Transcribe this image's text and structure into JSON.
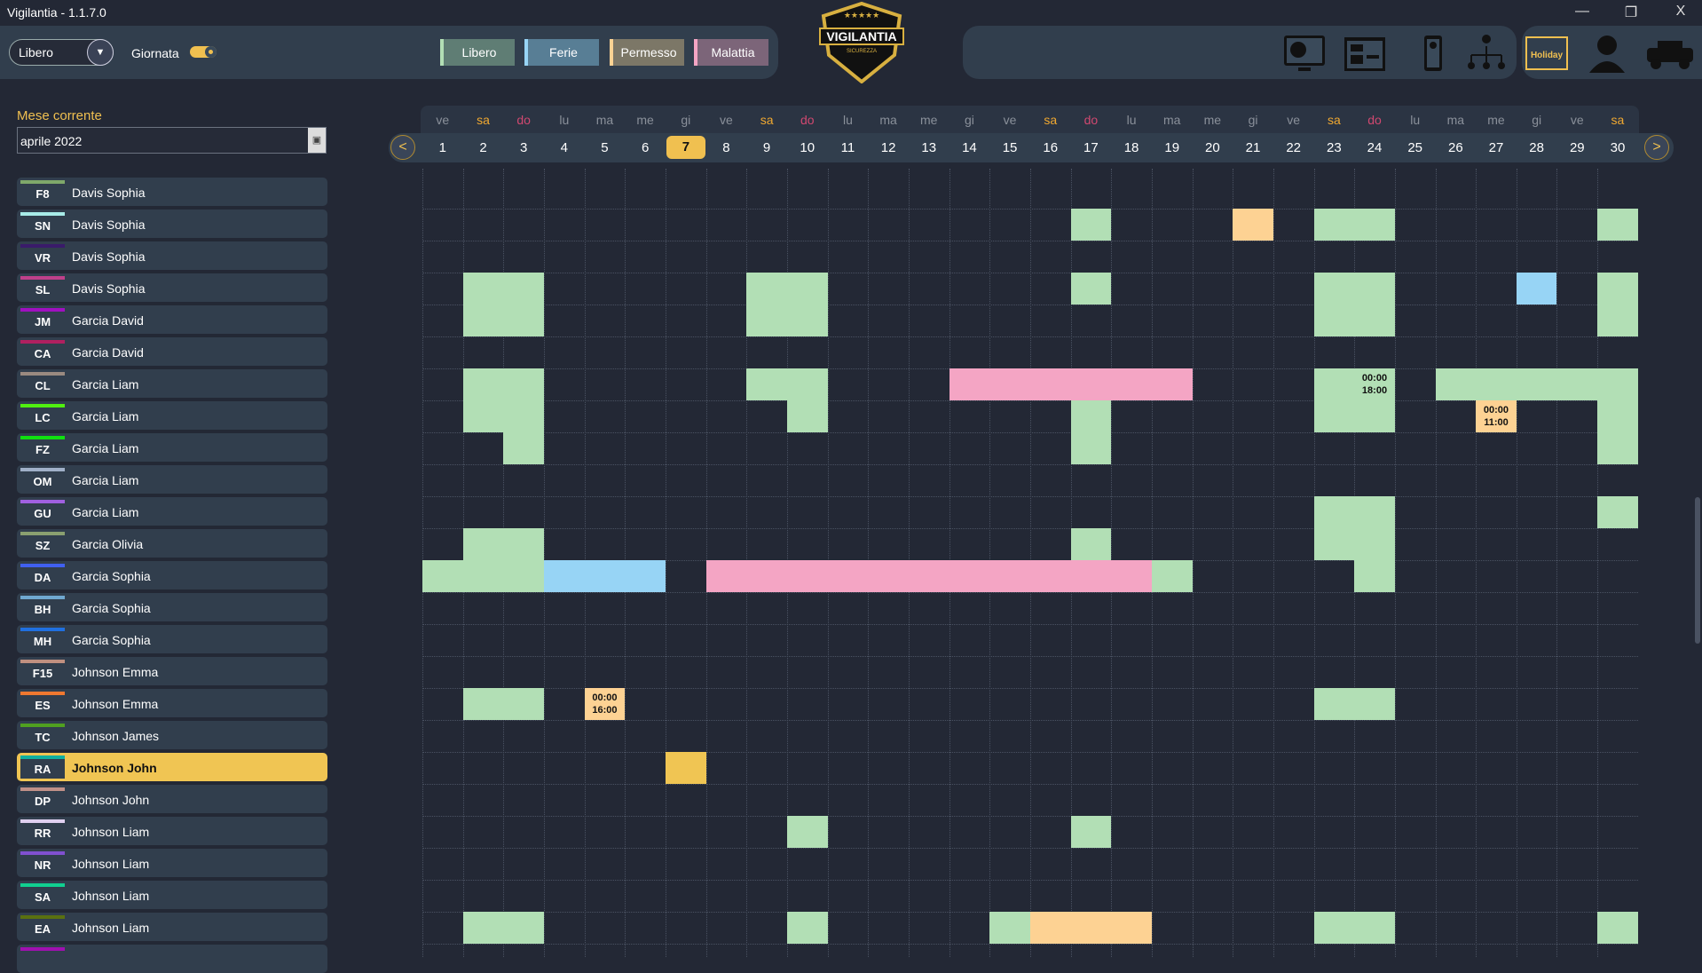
{
  "window": {
    "title": "Vigilantia - 1.1.7.0",
    "minimize": "—",
    "restore": "❐",
    "close": "X"
  },
  "toolbar": {
    "dropdown_value": "Libero",
    "giornata_label": "Giornata",
    "giornata_on": true,
    "legend": [
      {
        "label": "Libero",
        "color": "#b2dfb5",
        "bg": "#5f7d74"
      },
      {
        "label": "Ferie",
        "color": "#97d4f5",
        "bg": "#587e95"
      },
      {
        "label": "Permesso",
        "color": "#fdd293",
        "bg": "#7c7767"
      },
      {
        "label": "Malattia",
        "color": "#f4a5c4",
        "bg": "#7c6579"
      }
    ],
    "logo_text": "VIGILANTIA",
    "logo_sub": "SICUREZZA",
    "holiday_label": "Holiday"
  },
  "month": {
    "label": "Mese corrente",
    "value": "aprile 2022"
  },
  "calendar": {
    "weekdays": [
      "ve",
      "sa",
      "do",
      "lu",
      "ma",
      "me",
      "gi",
      "ve",
      "sa",
      "do",
      "lu",
      "ma",
      "me",
      "gi",
      "ve",
      "sa",
      "do",
      "lu",
      "ma",
      "me",
      "gi",
      "ve",
      "sa",
      "do",
      "lu",
      "ma",
      "me",
      "gi",
      "ve",
      "sa"
    ],
    "today": 7,
    "prev": "<",
    "next": ">"
  },
  "colors": {
    "libero": "#b2dfb5",
    "ferie": "#97d4f5",
    "permesso": "#fdd293",
    "malattia": "#f4a5c4",
    "selected": "#f0c553",
    "saturday": "#f0a830",
    "sunday": "#d04870"
  },
  "employees": [
    {
      "code": "F8",
      "name": "Davis Sophia",
      "stripe": "#7fa86a",
      "cells": []
    },
    {
      "code": "SN",
      "name": "Davis Sophia",
      "stripe": "#a8ece8",
      "cells": [
        {
          "from": 17,
          "to": 17,
          "type": "libero"
        },
        {
          "from": 21,
          "to": 21,
          "type": "permesso"
        },
        {
          "from": 23,
          "to": 24,
          "type": "libero"
        },
        {
          "from": 30,
          "to": 30,
          "type": "libero"
        }
      ]
    },
    {
      "code": "VR",
      "name": "Davis Sophia",
      "stripe": "#3a1a6a",
      "cells": []
    },
    {
      "code": "SL",
      "name": "Davis Sophia",
      "stripe": "#c0408a",
      "cells": [
        {
          "from": 2,
          "to": 3,
          "type": "libero"
        },
        {
          "from": 9,
          "to": 10,
          "type": "libero"
        },
        {
          "from": 17,
          "to": 17,
          "type": "libero"
        },
        {
          "from": 23,
          "to": 24,
          "type": "libero"
        },
        {
          "from": 28,
          "to": 28,
          "type": "ferie"
        },
        {
          "from": 30,
          "to": 30,
          "type": "libero"
        }
      ]
    },
    {
      "code": "JM",
      "name": "Garcia David",
      "stripe": "#a010c0",
      "cells": [
        {
          "from": 2,
          "to": 3,
          "type": "libero"
        },
        {
          "from": 9,
          "to": 10,
          "type": "libero"
        },
        {
          "from": 23,
          "to": 24,
          "type": "libero"
        },
        {
          "from": 30,
          "to": 30,
          "type": "libero"
        }
      ]
    },
    {
      "code": "CA",
      "name": "Garcia David",
      "stripe": "#b02060",
      "cells": []
    },
    {
      "code": "CL",
      "name": "Garcia Liam",
      "stripe": "#9a8a80",
      "cells": [
        {
          "from": 2,
          "to": 3,
          "type": "libero"
        },
        {
          "from": 9,
          "to": 10,
          "type": "libero"
        },
        {
          "from": 14,
          "to": 19,
          "type": "malattia"
        },
        {
          "from": 23,
          "to": 23,
          "type": "libero"
        },
        {
          "from": 24,
          "to": 24,
          "type": "libero",
          "text1": "00:00",
          "text2": "18:00"
        },
        {
          "from": 26,
          "to": 30,
          "type": "libero"
        }
      ]
    },
    {
      "code": "LC",
      "name": "Garcia Liam",
      "stripe": "#50f010",
      "cells": [
        {
          "from": 2,
          "to": 3,
          "type": "libero"
        },
        {
          "from": 10,
          "to": 10,
          "type": "libero"
        },
        {
          "from": 17,
          "to": 17,
          "type": "libero"
        },
        {
          "from": 23,
          "to": 24,
          "type": "libero"
        },
        {
          "from": 27,
          "to": 27,
          "type": "permesso",
          "text1": "00:00",
          "text2": "11:00"
        },
        {
          "from": 30,
          "to": 30,
          "type": "libero"
        }
      ]
    },
    {
      "code": "FZ",
      "name": "Garcia Liam",
      "stripe": "#10e010",
      "cells": [
        {
          "from": 3,
          "to": 3,
          "type": "libero"
        },
        {
          "from": 17,
          "to": 17,
          "type": "libero"
        },
        {
          "from": 30,
          "to": 30,
          "type": "libero"
        }
      ]
    },
    {
      "code": "OM",
      "name": "Garcia Liam",
      "stripe": "#a0b0c8",
      "cells": []
    },
    {
      "code": "GU",
      "name": "Garcia Liam",
      "stripe": "#a060e0",
      "cells": [
        {
          "from": 23,
          "to": 24,
          "type": "libero"
        },
        {
          "from": 30,
          "to": 30,
          "type": "libero"
        }
      ]
    },
    {
      "code": "SZ",
      "name": "Garcia Olivia",
      "stripe": "#8aa070",
      "cells": [
        {
          "from": 2,
          "to": 3,
          "type": "libero"
        },
        {
          "from": 17,
          "to": 17,
          "type": "libero"
        },
        {
          "from": 23,
          "to": 24,
          "type": "libero"
        }
      ]
    },
    {
      "code": "DA",
      "name": "Garcia Sophia",
      "stripe": "#4060f0",
      "cells": [
        {
          "from": 1,
          "to": 3,
          "type": "libero"
        },
        {
          "from": 4,
          "to": 6,
          "type": "ferie"
        },
        {
          "from": 8,
          "to": 18,
          "type": "malattia"
        },
        {
          "from": 19,
          "to": 19,
          "type": "libero"
        },
        {
          "from": 24,
          "to": 24,
          "type": "libero"
        }
      ]
    },
    {
      "code": "BH",
      "name": "Garcia Sophia",
      "stripe": "#70a8d0",
      "cells": []
    },
    {
      "code": "MH",
      "name": "Garcia Sophia",
      "stripe": "#2070e0",
      "cells": []
    },
    {
      "code": "F15",
      "name": "Johnson Emma",
      "stripe": "#c09080",
      "cells": []
    },
    {
      "code": "ES",
      "name": "Johnson Emma",
      "stripe": "#f07830",
      "cells": [
        {
          "from": 2,
          "to": 3,
          "type": "libero"
        },
        {
          "from": 5,
          "to": 5,
          "type": "permesso",
          "text1": "00:00",
          "text2": "16:00"
        },
        {
          "from": 23,
          "to": 24,
          "type": "libero"
        }
      ]
    },
    {
      "code": "TC",
      "name": "Johnson James",
      "stripe": "#50a020",
      "cells": []
    },
    {
      "code": "RA",
      "name": "Johnson John",
      "stripe": "#10b0a0",
      "selected": true,
      "cells": [
        {
          "from": 7,
          "to": 7,
          "type": "selected"
        }
      ]
    },
    {
      "code": "DP",
      "name": "Johnson John",
      "stripe": "#c09088",
      "cells": []
    },
    {
      "code": "RR",
      "name": "Johnson Liam",
      "stripe": "#e0d0f0",
      "cells": [
        {
          "from": 10,
          "to": 10,
          "type": "libero"
        },
        {
          "from": 17,
          "to": 17,
          "type": "libero"
        }
      ]
    },
    {
      "code": "NR",
      "name": "Johnson Liam",
      "stripe": "#8050d0",
      "cells": []
    },
    {
      "code": "SA",
      "name": "Johnson Liam",
      "stripe": "#10d090",
      "cells": []
    },
    {
      "code": "EA",
      "name": "Johnson Liam",
      "stripe": "#5a7010",
      "cells": [
        {
          "from": 2,
          "to": 3,
          "type": "libero"
        },
        {
          "from": 10,
          "to": 10,
          "type": "libero"
        },
        {
          "from": 15,
          "to": 15,
          "type": "libero"
        },
        {
          "from": 16,
          "to": 18,
          "type": "permesso"
        },
        {
          "from": 23,
          "to": 24,
          "type": "libero"
        },
        {
          "from": 30,
          "to": 30,
          "type": "libero"
        }
      ]
    },
    {
      "code": "",
      "name": "",
      "stripe": "#a010b0",
      "cells": []
    }
  ]
}
